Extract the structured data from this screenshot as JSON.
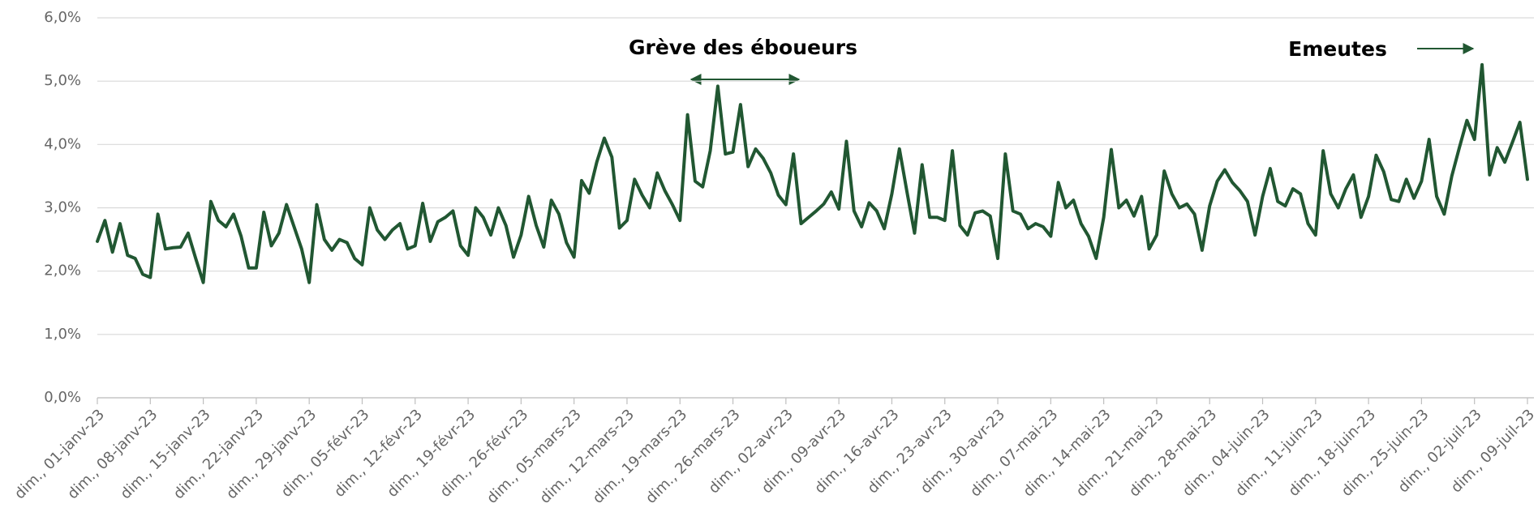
{
  "chart_data": {
    "type": "line",
    "categories": [
      "dim., 01-janv-23",
      null,
      null,
      null,
      null,
      null,
      null,
      "dim., 08-janv-23",
      null,
      null,
      null,
      null,
      null,
      null,
      "dim., 15-janv-23",
      null,
      null,
      null,
      null,
      null,
      null,
      "dim., 22-janv-23",
      null,
      null,
      null,
      null,
      null,
      null,
      "dim., 29-janv-23",
      null,
      null,
      null,
      null,
      null,
      null,
      "dim., 05-févr-23",
      null,
      null,
      null,
      null,
      null,
      null,
      "dim., 12-févr-23",
      null,
      null,
      null,
      null,
      null,
      null,
      "dim., 19-févr-23",
      null,
      null,
      null,
      null,
      null,
      null,
      "dim., 26-févr-23",
      null,
      null,
      null,
      null,
      null,
      null,
      "dim., 05-mars-23",
      null,
      null,
      null,
      null,
      null,
      null,
      "dim., 12-mars-23",
      null,
      null,
      null,
      null,
      null,
      null,
      "dim., 19-mars-23",
      null,
      null,
      null,
      null,
      null,
      null,
      "dim., 26-mars-23",
      null,
      null,
      null,
      null,
      null,
      null,
      "dim., 02-avr-23",
      null,
      null,
      null,
      null,
      null,
      null,
      "dim., 09-avr-23",
      null,
      null,
      null,
      null,
      null,
      null,
      "dim., 16-avr-23",
      null,
      null,
      null,
      null,
      null,
      null,
      "dim., 23-avr-23",
      null,
      null,
      null,
      null,
      null,
      null,
      "dim., 30-avr-23",
      null,
      null,
      null,
      null,
      null,
      null,
      "dim., 07-mai-23",
      null,
      null,
      null,
      null,
      null,
      null,
      "dim., 14-mai-23",
      null,
      null,
      null,
      null,
      null,
      null,
      "dim., 21-mai-23",
      null,
      null,
      null,
      null,
      null,
      null,
      "dim., 28-mai-23",
      null,
      null,
      null,
      null,
      null,
      null,
      "dim., 04-juin-23",
      null,
      null,
      null,
      null,
      null,
      null,
      "dim., 11-juin-23",
      null,
      null,
      null,
      null,
      null,
      null,
      "dim., 18-juin-23",
      null,
      null,
      null,
      null,
      null,
      null,
      "dim., 25-juin-23",
      null,
      null,
      null,
      null,
      null,
      null,
      "dim., 02-juil-23",
      null,
      null,
      null,
      null,
      null,
      null,
      "dim., 09-juil-23"
    ],
    "values": [
      2.47,
      2.8,
      2.3,
      2.75,
      2.25,
      2.2,
      1.95,
      1.9,
      2.9,
      2.35,
      2.37,
      2.38,
      2.6,
      2.2,
      1.82,
      3.1,
      2.8,
      2.7,
      2.9,
      2.55,
      2.05,
      2.05,
      2.93,
      2.4,
      2.6,
      3.05,
      2.7,
      2.35,
      1.82,
      3.05,
      2.5,
      2.33,
      2.5,
      2.45,
      2.2,
      2.1,
      3.0,
      2.65,
      2.5,
      2.65,
      2.75,
      2.35,
      2.4,
      3.07,
      2.47,
      2.78,
      2.85,
      2.95,
      2.4,
      2.25,
      3.0,
      2.85,
      2.57,
      3.0,
      2.72,
      2.22,
      2.57,
      3.18,
      2.72,
      2.38,
      3.12,
      2.9,
      2.45,
      2.22,
      3.43,
      3.23,
      3.72,
      4.1,
      3.8,
      2.68,
      2.8,
      3.45,
      3.2,
      3.0,
      3.55,
      3.27,
      3.05,
      2.8,
      4.47,
      3.42,
      3.33,
      3.9,
      4.92,
      3.85,
      3.88,
      4.63,
      3.65,
      3.93,
      3.78,
      3.55,
      3.2,
      3.05,
      3.85,
      2.75,
      2.85,
      2.95,
      3.06,
      3.25,
      2.98,
      4.05,
      2.95,
      2.7,
      3.08,
      2.95,
      2.67,
      3.22,
      3.93,
      3.25,
      2.6,
      3.68,
      2.85,
      2.85,
      2.8,
      3.9,
      2.72,
      2.57,
      2.92,
      2.95,
      2.87,
      2.2,
      3.85,
      2.95,
      2.9,
      2.67,
      2.75,
      2.7,
      2.55,
      3.4,
      3.0,
      3.12,
      2.75,
      2.55,
      2.2,
      2.85,
      3.92,
      3.0,
      3.12,
      2.87,
      3.18,
      2.35,
      2.57,
      3.58,
      3.22,
      3.0,
      3.06,
      2.9,
      2.33,
      3.03,
      3.42,
      3.6,
      3.4,
      3.27,
      3.1,
      2.57,
      3.18,
      3.62,
      3.1,
      3.03,
      3.3,
      3.22,
      2.75,
      2.57,
      3.9,
      3.22,
      3.0,
      3.3,
      3.52,
      2.85,
      3.18,
      3.83,
      3.57,
      3.13,
      3.1,
      3.45,
      3.15,
      3.42,
      4.08,
      3.18,
      2.9,
      3.5,
      3.95,
      4.38,
      4.08,
      5.26,
      3.52,
      3.95,
      3.72,
      4.03,
      4.35,
      3.45
    ],
    "color": "#215732",
    "ylim": [
      0,
      6
    ],
    "yticks": [
      {
        "value": 0,
        "label": "0,0%"
      },
      {
        "value": 1,
        "label": "1,0%"
      },
      {
        "value": 2,
        "label": "2,0%"
      },
      {
        "value": 3,
        "label": "3,0%"
      },
      {
        "value": 4,
        "label": "4,0%"
      },
      {
        "value": 5,
        "label": "5,0%"
      },
      {
        "value": 6,
        "label": "6,0%"
      }
    ],
    "grid": true,
    "annotations": [
      {
        "text": "Grève des éboueurs"
      },
      {
        "text": "Emeutes"
      }
    ]
  }
}
